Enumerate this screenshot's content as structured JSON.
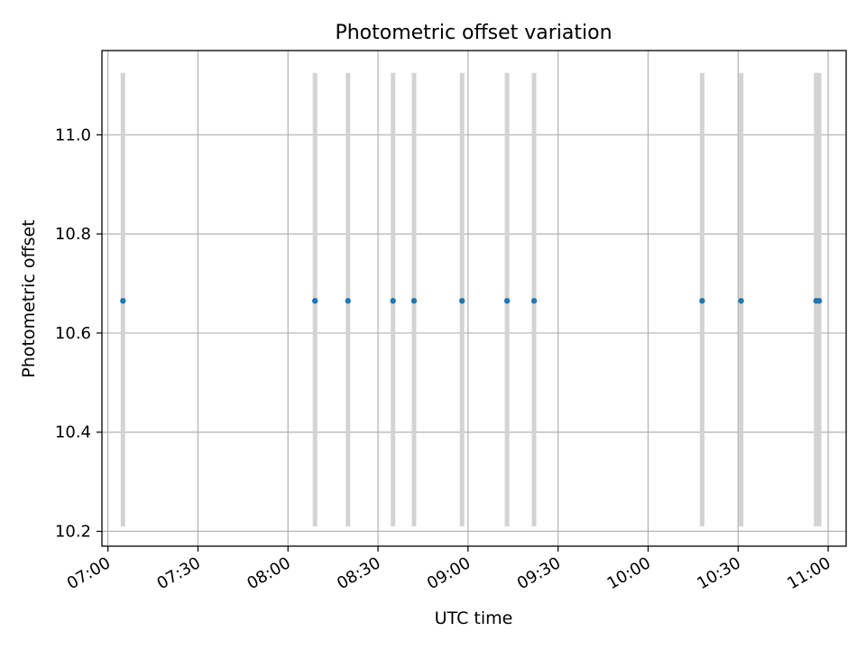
{
  "chart_data": {
    "type": "scatter",
    "title": "Photometric offset variation",
    "xlabel": "UTC time",
    "ylabel": "Photometric offset",
    "xlim": [
      "06:58",
      "11:06"
    ],
    "ylim": [
      10.17,
      11.17
    ],
    "xticks": [
      "07:00",
      "07:30",
      "08:00",
      "08:30",
      "09:00",
      "09:30",
      "10:00",
      "10:30",
      "11:00"
    ],
    "yticks": [
      "10.2",
      "10.4",
      "10.6",
      "10.8",
      "11.0"
    ],
    "grid": true,
    "points": [
      {
        "x": "07:05",
        "y": 10.665,
        "ylow": 10.21,
        "yhigh": 11.125
      },
      {
        "x": "08:09",
        "y": 10.665,
        "ylow": 10.21,
        "yhigh": 11.125
      },
      {
        "x": "08:20",
        "y": 10.665,
        "ylow": 10.21,
        "yhigh": 11.125
      },
      {
        "x": "08:35",
        "y": 10.665,
        "ylow": 10.21,
        "yhigh": 11.125
      },
      {
        "x": "08:42",
        "y": 10.665,
        "ylow": 10.21,
        "yhigh": 11.125
      },
      {
        "x": "08:58",
        "y": 10.665,
        "ylow": 10.21,
        "yhigh": 11.125
      },
      {
        "x": "09:13",
        "y": 10.665,
        "ylow": 10.21,
        "yhigh": 11.125
      },
      {
        "x": "09:22",
        "y": 10.665,
        "ylow": 10.21,
        "yhigh": 11.125
      },
      {
        "x": "10:18",
        "y": 10.665,
        "ylow": 10.21,
        "yhigh": 11.125
      },
      {
        "x": "10:31",
        "y": 10.665,
        "ylow": 10.21,
        "yhigh": 11.125
      },
      {
        "x": "10:56",
        "y": 10.665,
        "ylow": 10.21,
        "yhigh": 11.125
      },
      {
        "x": "10:57",
        "y": 10.665,
        "ylow": 10.21,
        "yhigh": 11.125
      }
    ],
    "marker_color": "#1f77b4",
    "errorbar_color": "#d3d3d3"
  }
}
